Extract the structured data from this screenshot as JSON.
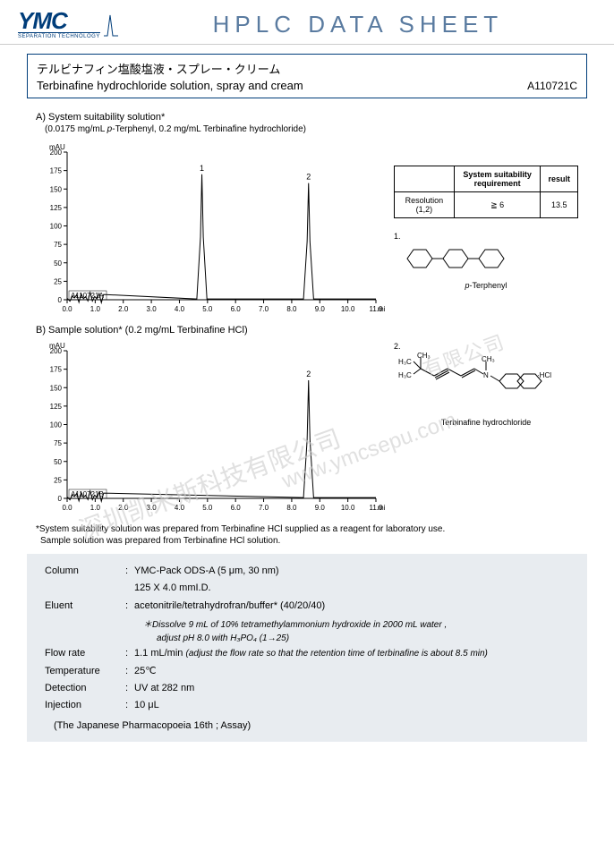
{
  "header": {
    "logo_text": "YMC",
    "logo_sub": "SEPARATION TECHNOLOGY",
    "sheet_title": "HPLC DATA SHEET"
  },
  "title": {
    "jp": "テルビナフィン塩酸塩液・スプレー・クリーム",
    "en": "Terbinafine hydrochloride solution, spray and cream",
    "code": "A110721C"
  },
  "chrom_a": {
    "label": "A) System suitability solution*",
    "sub": "(0.0175 mg/mL p-Terphenyl, 0.2 mg/mL Terbinafine hydrochloride)",
    "y_label": "mAU",
    "y_max": 200,
    "y_ticks": [
      0,
      25,
      50,
      75,
      100,
      125,
      150,
      175,
      200
    ],
    "x_label": "min",
    "x_ticks": [
      0.0,
      1.0,
      2.0,
      3.0,
      4.0,
      5.0,
      6.0,
      7.0,
      8.0,
      9.0,
      10.0,
      11.0
    ],
    "peaks": [
      {
        "num": "1",
        "rt": 4.8,
        "height": 170
      },
      {
        "num": "2",
        "rt": 8.6,
        "height": 158
      }
    ],
    "sample_id": "A110721A",
    "line_color": "#000000",
    "bg": "#ffffff"
  },
  "chrom_b": {
    "label": "B) Sample solution* (0.2 mg/mL Terbinafine HCl)",
    "y_label": "mAU",
    "y_max": 200,
    "y_ticks": [
      0,
      25,
      50,
      75,
      100,
      125,
      150,
      175,
      200
    ],
    "x_label": "min",
    "x_ticks": [
      0.0,
      1.0,
      2.0,
      3.0,
      4.0,
      5.0,
      6.0,
      7.0,
      8.0,
      9.0,
      10.0,
      11.0
    ],
    "peaks": [
      {
        "num": "2",
        "rt": 8.6,
        "height": 160
      }
    ],
    "sample_id": "A110721B",
    "line_color": "#000000",
    "bg": "#ffffff"
  },
  "result_table": {
    "headers": [
      "",
      "System suitability requirement",
      "result"
    ],
    "row_label": "Resolution (1,2)",
    "req": "≧ 6",
    "result": "13.5"
  },
  "compounds": {
    "c1_num": "1.",
    "c1_name": "p-Terphenyl",
    "c2_num": "2.",
    "c2_name": "Terbinafine hydrochloride"
  },
  "footnote": {
    "l1": "*System suitability solution was prepared from Terbinafine HCl supplied as a reagent for laboratory use.",
    "l2": "Sample solution was prepared from Terbinafine HCl solution."
  },
  "conditions": {
    "column": {
      "label": "Column",
      "l1": "YMC-Pack ODS-A (5 μm, 30 nm)",
      "l2": "125 X 4.0 mmI.D."
    },
    "eluent": {
      "label": "Eluent",
      "val": "acetonitrile/tetrahydrofran/buffer* (40/20/40)",
      "note1": "＊Dissolve 9 mL of 10% tetramethylammonium hydroxide in 2000 mL water ,",
      "note2": "adjust pH 8.0 with H₃PO₄ (1→25)"
    },
    "flow": {
      "label": "Flow rate",
      "val": "1.1 mL/min",
      "note": "(adjust the flow rate so that the retention time of terbinafine is about 8.5 min)"
    },
    "temp": {
      "label": "Temperature",
      "val": "25℃"
    },
    "detection": {
      "label": "Detection",
      "val": "UV at 282 nm"
    },
    "injection": {
      "label": "Injection",
      "val": "10 μL"
    },
    "ref": "(The Japanese Pharmacopoeia 16th ; Assay)"
  },
  "watermark": {
    "cn": "深圳凯米斯科技有限公司",
    "url": "www.ymcsepu.com"
  }
}
